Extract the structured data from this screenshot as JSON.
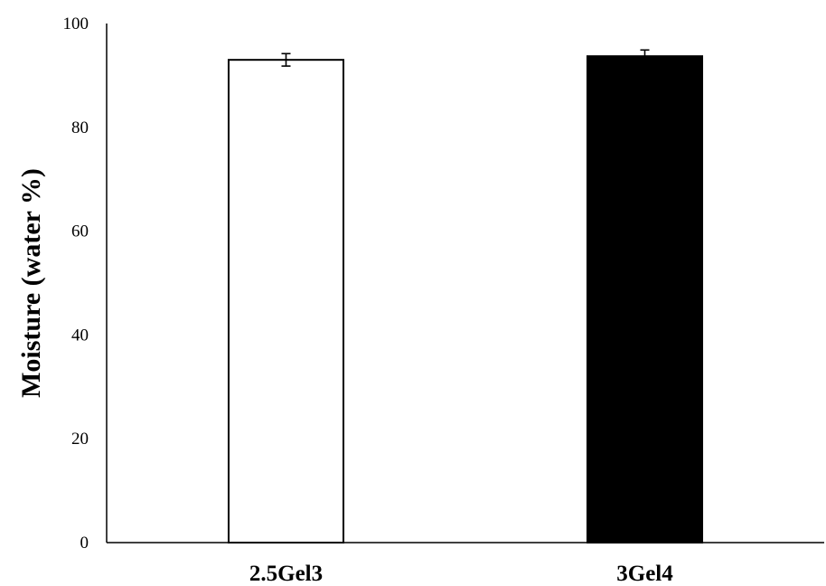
{
  "chart_data": {
    "type": "bar",
    "categories": [
      "2.5Gel3",
      "3Gel4"
    ],
    "values": [
      93.0,
      93.7
    ],
    "errors": [
      1.2,
      1.2
    ],
    "bar_colors": [
      "#ffffff",
      "#000000"
    ],
    "bar_edge_color": "#000000",
    "title": "",
    "xlabel": "",
    "ylabel": "Moisture (water %)",
    "ylim": [
      0,
      100
    ],
    "yticks": [
      0,
      20,
      40,
      60,
      80,
      100
    ],
    "grid": false,
    "legend": "none"
  }
}
